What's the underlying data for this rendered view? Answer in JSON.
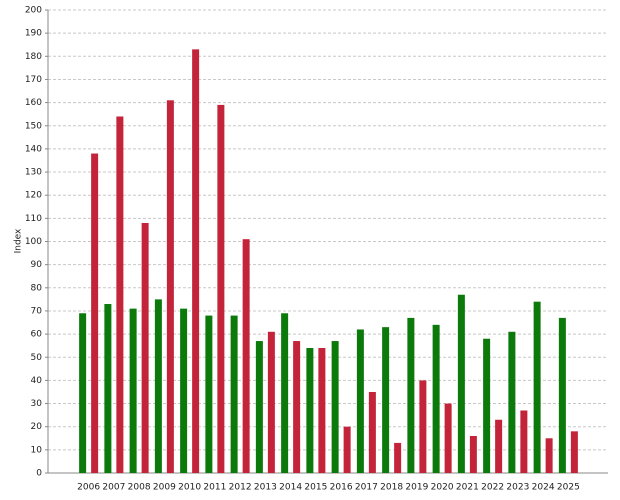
{
  "chart_data": {
    "type": "bar",
    "y_label": "Index",
    "categories": [
      "2006",
      "2007",
      "2008",
      "2009",
      "2010",
      "2011",
      "2012",
      "2013",
      "2014",
      "2015",
      "2016",
      "2017",
      "2018",
      "2019",
      "2020",
      "2021",
      "2022",
      "2023",
      "2024",
      "2025"
    ],
    "series": [
      {
        "color": "#0b7a0b",
        "values": [
          69,
          73,
          71,
          75,
          71,
          68,
          68,
          57,
          69,
          54,
          57,
          62,
          63,
          67,
          64,
          77,
          58,
          61,
          74,
          67
        ]
      },
      {
        "color": "#c3243a",
        "values": [
          138,
          154,
          108,
          161,
          183,
          159,
          101,
          61,
          57,
          54,
          20,
          35,
          13,
          40,
          30,
          16,
          23,
          27,
          15,
          18
        ]
      }
    ],
    "ylim": [
      0,
      200
    ],
    "yticks": [
      0,
      10,
      20,
      30,
      40,
      50,
      60,
      70,
      80,
      90,
      100,
      110,
      120,
      130,
      140,
      150,
      160,
      170,
      180,
      190,
      200
    ],
    "grid": true
  }
}
